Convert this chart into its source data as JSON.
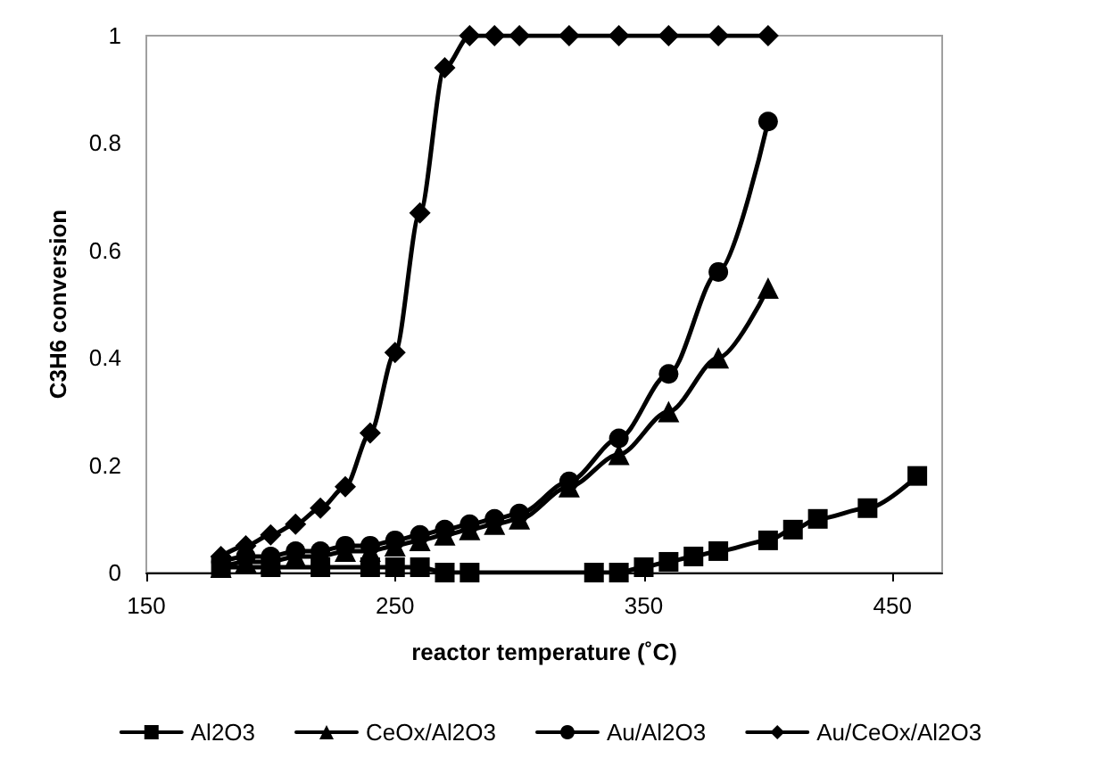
{
  "chart_data": {
    "type": "line",
    "xlabel": "reactor temperature (˚C)",
    "ylabel": "C3H6 conversion",
    "xlim": [
      150,
      470
    ],
    "xticks": [
      150,
      250,
      350,
      450
    ],
    "ylim": [
      0,
      1
    ],
    "yticks": [
      0,
      0.2,
      0.4,
      0.6,
      0.8,
      1
    ],
    "grid": false,
    "legend": "bottom",
    "line_style": "solid",
    "series": [
      {
        "name": "Al2O3",
        "color": "#000000",
        "marker": "square",
        "x": [
          180,
          200,
          220,
          240,
          250,
          260,
          270,
          280,
          330,
          340,
          350,
          360,
          370,
          380,
          400,
          410,
          420,
          440,
          460
        ],
        "values": [
          0.01,
          0.01,
          0.01,
          0.01,
          0.01,
          0.01,
          0,
          0,
          0,
          0,
          0.01,
          0.02,
          0.03,
          0.04,
          0.06,
          0.08,
          0.1,
          0.12,
          0.18
        ]
      },
      {
        "name": "CeOx/Al2O3",
        "color": "#000000",
        "marker": "triangle",
        "x": [
          180,
          190,
          200,
          210,
          220,
          230,
          240,
          250,
          260,
          270,
          280,
          290,
          300,
          320,
          340,
          360,
          380,
          400
        ],
        "values": [
          0.01,
          0.02,
          0.02,
          0.03,
          0.03,
          0.04,
          0.04,
          0.05,
          0.06,
          0.07,
          0.08,
          0.09,
          0.1,
          0.16,
          0.22,
          0.3,
          0.4,
          0.53
        ]
      },
      {
        "name": "Au/Al2O3",
        "color": "#000000",
        "marker": "circle",
        "x": [
          180,
          190,
          200,
          210,
          220,
          230,
          240,
          250,
          260,
          270,
          280,
          290,
          300,
          320,
          340,
          360,
          380,
          400
        ],
        "values": [
          0.02,
          0.03,
          0.03,
          0.04,
          0.04,
          0.05,
          0.05,
          0.06,
          0.07,
          0.08,
          0.09,
          0.1,
          0.11,
          0.17,
          0.25,
          0.37,
          0.56,
          0.84
        ]
      },
      {
        "name": "Au/CeOx/Al2O3",
        "color": "#000000",
        "marker": "diamond",
        "x": [
          180,
          190,
          200,
          210,
          220,
          230,
          240,
          250,
          260,
          270,
          280,
          290,
          300,
          320,
          340,
          360,
          380,
          400
        ],
        "values": [
          0.03,
          0.05,
          0.07,
          0.09,
          0.12,
          0.16,
          0.26,
          0.41,
          0.67,
          0.94,
          1,
          1,
          1,
          1,
          1,
          1,
          1,
          1
        ]
      }
    ]
  }
}
